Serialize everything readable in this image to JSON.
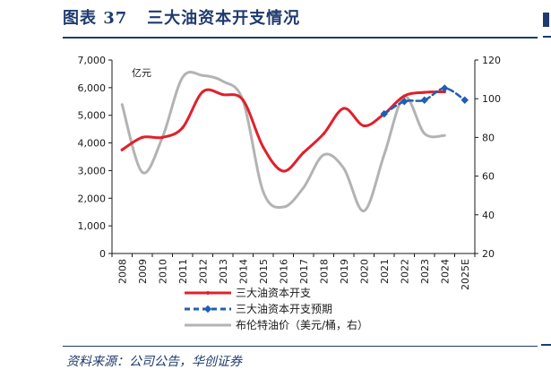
{
  "header": {
    "figure_label": "图表 37",
    "title": "三大油资本开支情况"
  },
  "footer": {
    "source": "资料来源：公司公告，华创证券"
  },
  "chart_data": {
    "type": "line",
    "left_axis": {
      "unit_label": "亿元",
      "range": [
        0,
        7000
      ],
      "ticks": [
        "0",
        "1,000",
        "2,000",
        "3,000",
        "4,000",
        "5,000",
        "6,000",
        "7,000"
      ]
    },
    "right_axis": {
      "range": [
        20,
        120
      ],
      "ticks": [
        "20",
        "40",
        "60",
        "80",
        "100",
        "120"
      ]
    },
    "categories": [
      "2008",
      "2009",
      "2010",
      "2011",
      "2012",
      "2013",
      "2014",
      "2015",
      "2016",
      "2017",
      "2018",
      "2019",
      "2020",
      "2021",
      "2022",
      "2023",
      "2024",
      "2025E"
    ],
    "series": [
      {
        "name": "三大油资本开支",
        "axis": "left",
        "color": "#e0202a",
        "style": "solid",
        "x": [
          2008,
          2009,
          2010,
          2011,
          2012,
          2013,
          2014,
          2015,
          2016,
          2017,
          2018,
          2019,
          2020,
          2021,
          2022,
          2023,
          2024
        ],
        "values": [
          3750,
          4200,
          4200,
          4550,
          5850,
          5750,
          5550,
          3850,
          2980,
          3650,
          4330,
          5250,
          4620,
          5050,
          5700,
          5830,
          5850
        ]
      },
      {
        "name": "三大油资本开支预期",
        "axis": "left",
        "color": "#1f5fb4",
        "style": "dashed",
        "x": [
          2021,
          2022,
          2023,
          2024,
          2025
        ],
        "values": [
          5050,
          5500,
          5550,
          5980,
          5550
        ]
      },
      {
        "name": "布伦特油价（美元/桶，右）",
        "axis": "right",
        "color": "#b3b3b3",
        "style": "solid",
        "x": [
          2008,
          2009,
          2010,
          2011,
          2012,
          2013,
          2014,
          2015,
          2016,
          2017,
          2018,
          2019,
          2020,
          2021,
          2022,
          2023,
          2024
        ],
        "values": [
          97,
          62,
          80,
          111,
          112,
          109,
          99,
          52,
          44,
          54,
          71,
          64,
          42,
          71,
          101,
          82,
          81
        ]
      }
    ],
    "legend_position": "bottom-left"
  }
}
